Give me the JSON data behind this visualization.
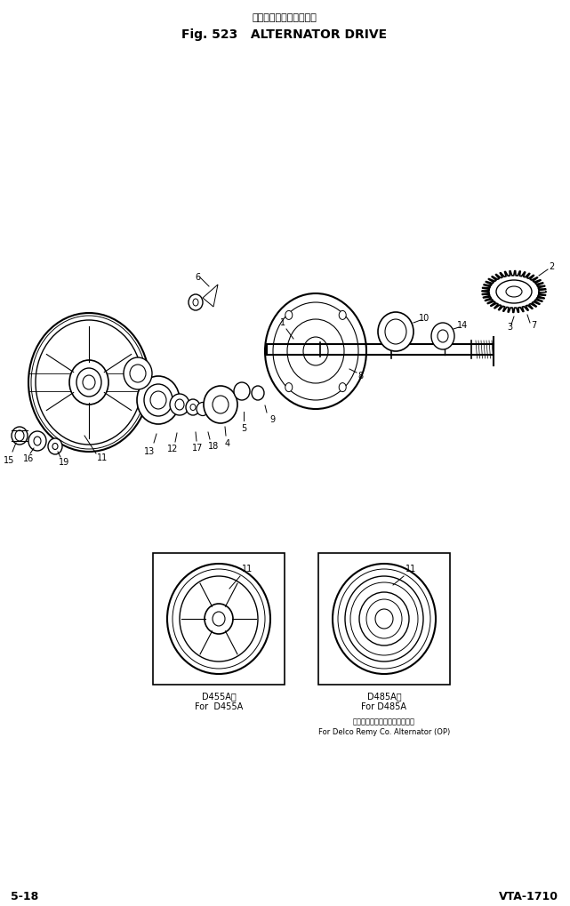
{
  "title_japanese": "オルタネータ・ドライブ",
  "title_english": "Fig. 523   ALTERNATOR DRIVE",
  "footer_left": "5-18",
  "footer_right": "VTA-1710",
  "bg_color": "#ffffff",
  "line_color": "#000000",
  "box1_label_jp": "D455A用",
  "box1_label_en": "For  D455A",
  "box2_label_jp": "D485A用",
  "box2_label_en": "For D485A",
  "box3_label_jp": "デルコレミー製オルタネータ用",
  "box3_label_en": "For Delco Remy Co. Alternator (OP)",
  "figsize": [
    6.41,
    10.19
  ],
  "dpi": 100
}
